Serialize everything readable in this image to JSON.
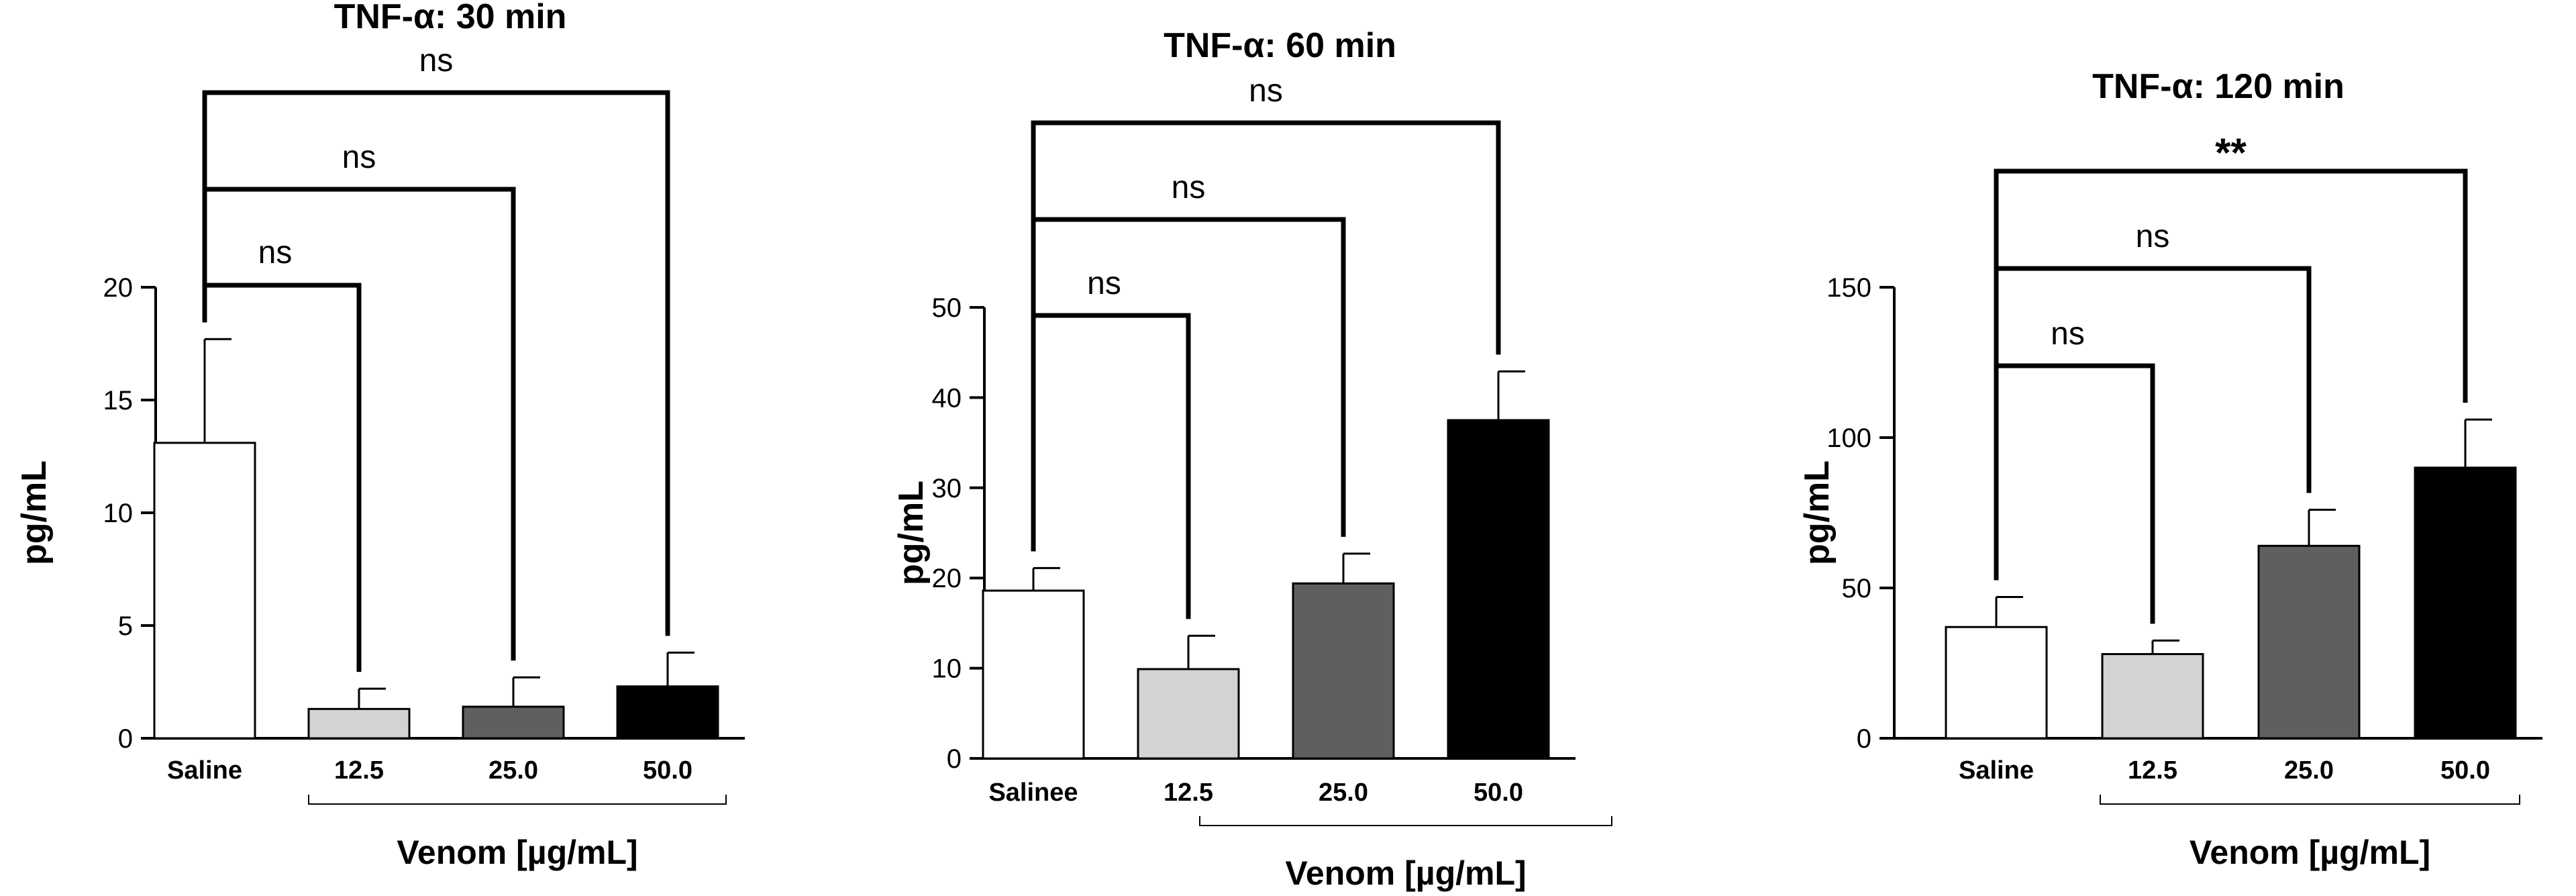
{
  "chart_data": [
    {
      "type": "bar",
      "title": "TNF-α: 30 min",
      "ylabel": "pg/mL",
      "ylim": [
        0,
        20
      ],
      "yticks": [
        "0",
        "5",
        "10",
        "15",
        "20"
      ],
      "categories": [
        "Saline",
        "12.5",
        "25.0",
        "50.0"
      ],
      "values": [
        13.1,
        1.3,
        1.4,
        2.3
      ],
      "errors": [
        4.6,
        0.9,
        1.3,
        1.5
      ],
      "bar_colors": [
        "#ffffff",
        "#d3d3d3",
        "#5f5f5f",
        "#000000"
      ],
      "group_label": "Venom [µg/mL]",
      "comparisons": [
        {
          "from": "Saline",
          "to": "12.5",
          "label": "ns"
        },
        {
          "from": "Saline",
          "to": "25.0",
          "label": "ns"
        },
        {
          "from": "Saline",
          "to": "50.0",
          "label": "ns"
        }
      ]
    },
    {
      "type": "bar",
      "title": "TNF-α: 60 min",
      "ylabel": "pg/mL",
      "ylim": [
        0,
        50
      ],
      "yticks": [
        "0",
        "10",
        "20",
        "30",
        "40",
        "50"
      ],
      "categories": [
        "Salinee",
        "12.5",
        "25.0",
        "50.0"
      ],
      "values": [
        18.6,
        9.9,
        19.4,
        37.5
      ],
      "errors": [
        2.5,
        3.7,
        3.3,
        5.4
      ],
      "bar_colors": [
        "#ffffff",
        "#d3d3d3",
        "#5f5f5f",
        "#000000"
      ],
      "group_label": "Venom [µg/mL]",
      "comparisons": [
        {
          "from": "Salinee",
          "to": "12.5",
          "label": "ns"
        },
        {
          "from": "Salinee",
          "to": "25.0",
          "label": "ns"
        },
        {
          "from": "Salinee",
          "to": "50.0",
          "label": "ns"
        }
      ]
    },
    {
      "type": "bar",
      "title": "TNF-α: 120 min",
      "ylabel": "pg/mL",
      "ylim": [
        0,
        150
      ],
      "yticks": [
        "0",
        "50",
        "100",
        "150"
      ],
      "categories": [
        "Saline",
        "12.5",
        "25.0",
        "50.0"
      ],
      "values": [
        37,
        28,
        64,
        90
      ],
      "errors": [
        10,
        4.5,
        12,
        16
      ],
      "bar_colors": [
        "#ffffff",
        "#d3d3d3",
        "#5f5f5f",
        "#000000"
      ],
      "group_label": "Venom [µg/mL]",
      "comparisons": [
        {
          "from": "Saline",
          "to": "12.5",
          "label": "ns"
        },
        {
          "from": "Saline",
          "to": "25.0",
          "label": "ns"
        },
        {
          "from": "Saline",
          "to": "50.0",
          "label": "**"
        }
      ]
    }
  ]
}
